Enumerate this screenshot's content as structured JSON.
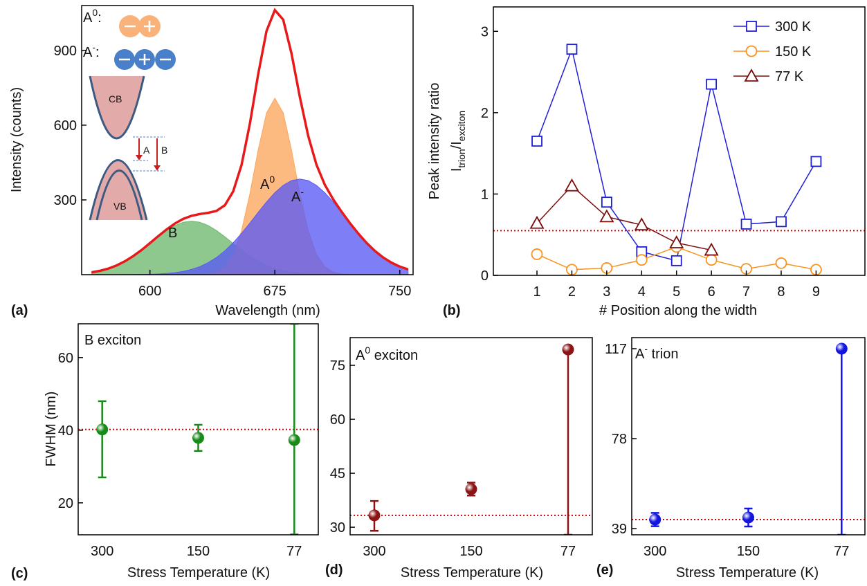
{
  "chart_data": [
    {
      "type": "area",
      "panel_label": "(a)",
      "xlabel": "Wavelength (nm)",
      "ylabel": "Intensity (counts)",
      "xlim": [
        559,
        758
      ],
      "ylim": [
        0,
        1080
      ],
      "xticks": [
        600,
        675,
        750
      ],
      "yticks": [
        300,
        600,
        900
      ],
      "x": [
        565,
        570,
        575,
        580,
        585,
        590,
        595,
        600,
        605,
        610,
        615,
        620,
        625,
        630,
        635,
        640,
        645,
        650,
        655,
        660,
        665,
        670,
        675,
        680,
        685,
        690,
        695,
        700,
        705,
        710,
        715,
        720,
        725,
        730,
        735,
        740,
        745,
        750,
        755
      ],
      "series": [
        {
          "color": "#6fb86f",
          "fill": true,
          "values": [
            9.4,
            15.6,
            24.5,
            37.1,
            53.6,
            74.2,
            98.4,
            125.0,
            151.9,
            176.9,
            197.1,
            210.4,
            215,
            210.4,
            197.1,
            176.9,
            151.9,
            125,
            98.4,
            74.2,
            53.6,
            37.1,
            24.5,
            15.6,
            9.4,
            5.5,
            3.1,
            1.6,
            0.8,
            0.4,
            0.2,
            0.1,
            0,
            0,
            0,
            0,
            0,
            0,
            0
          ]
        },
        {
          "color": "#fba55c",
          "fill": true,
          "values": [
            0,
            0,
            0,
            0,
            0,
            0,
            0,
            0,
            0,
            0,
            0,
            0,
            0.1,
            0.6,
            2.8,
            10.1,
            31.1,
            80.9,
            176.6,
            324.1,
            500.3,
            649.2,
            708,
            649.2,
            500.3,
            324.1,
            176.6,
            80.9,
            31.1,
            10.1,
            2.8,
            0.6,
            0,
            0,
            0,
            0,
            0,
            0,
            0
          ]
        },
        {
          "color": "#5a5af5",
          "fill": true,
          "values": [
            0,
            0,
            0,
            0.1,
            0.2,
            0.4,
            0.8,
            1.5,
            2.7,
            4.8,
            8.1,
            13.3,
            21.2,
            32.5,
            48.2,
            69.1,
            95.8,
            128.1,
            165.7,
            207.1,
            250.1,
            291.9,
            329.1,
            358.5,
            377.5,
            384,
            377.5,
            358.5,
            329.1,
            291.9,
            250.1,
            207.1,
            165.7,
            128.1,
            95.8,
            69.1,
            48.2,
            32.5,
            21.2
          ]
        },
        {
          "color": "#e8191b",
          "fill": false,
          "values": [
            9.4,
            15.6,
            24.5,
            37.2,
            53.8,
            74.6,
            99.2,
            126.5,
            154.6,
            181.7,
            205.2,
            223.7,
            236.3,
            243.5,
            248.1,
            256.1,
            278.8,
            334,
            440.7,
            605.4,
            804,
            978.2,
            1061.6,
            1023.3,
            887.2,
            713.6,
            557.2,
            441,
            361,
            302.4,
            253.1,
            207.8,
            165.7,
            128.1,
            95.8,
            69.1,
            48.2,
            32.5,
            21.2
          ]
        }
      ],
      "annotations": [
        {
          "text": "B"
        },
        {
          "text": "A",
          "sup": "0"
        },
        {
          "text": "A",
          "sup": "-"
        }
      ],
      "inset": {
        "exciton": {
          "text": "A",
          "sup": "0",
          "rest": ":"
        },
        "trion": {
          "text": "A",
          "sup": "-",
          "rest": ":"
        },
        "cb": "CB",
        "vb": "VB",
        "arrow_a": "A",
        "arrow_b": "B"
      }
    },
    {
      "type": "line",
      "panel_label": "(b)",
      "xlabel": "# Position along the width",
      "ylabel": "Peak intensity ratio",
      "ylabel_line2": [
        {
          "text": "I",
          "sub": "trion"
        },
        {
          "text": "/I",
          "sub": "exciton"
        }
      ],
      "xlim": [
        -0.25,
        10.4
      ],
      "ylim": [
        0,
        3.3
      ],
      "xticks": [
        1,
        2,
        3,
        4,
        5,
        6,
        7,
        8,
        9
      ],
      "yticks": [
        0,
        1,
        2,
        3
      ],
      "hline": {
        "value": 0.55,
        "color": "#cc0000"
      },
      "legend": "upper right",
      "x": [
        1,
        2,
        3,
        4,
        5,
        6,
        7,
        8,
        9
      ],
      "series": [
        {
          "name": "300 K",
          "color": "#1f1fd6",
          "marker": "square",
          "values": [
            1.65,
            2.78,
            0.9,
            0.29,
            0.18,
            2.35,
            0.63,
            0.66,
            1.4
          ]
        },
        {
          "name": "150 K",
          "color": "#f7931e",
          "marker": "circle",
          "values": [
            0.26,
            0.07,
            0.09,
            0.19,
            0.35,
            0.19,
            0.08,
            0.15,
            0.07
          ]
        },
        {
          "name": "77 K",
          "color": "#7a0c0c",
          "marker": "triangle",
          "values": [
            0.64,
            1.1,
            0.72,
            0.62,
            0.4,
            0.31,
            null,
            null,
            null
          ]
        }
      ]
    },
    {
      "type": "errorbar",
      "panel_label": "(c)",
      "title": {
        "text": "B exciton"
      },
      "ylabel": "FWHM (nm)",
      "xlabel": "Stress Temperature (K)",
      "categories": [
        "300",
        "150",
        "77"
      ],
      "values": [
        40.2,
        37.9,
        37.3
      ],
      "err_plus": [
        7.8,
        3.6,
        32
      ],
      "err_minus": [
        13.2,
        3.6,
        26
      ],
      "color": "#178a17",
      "ylim": [
        11.2,
        69.3
      ],
      "yticks": [
        20,
        40,
        60
      ],
      "hline": {
        "value": 40.2,
        "color": "#cc0000"
      }
    },
    {
      "type": "errorbar",
      "panel_label": "(d)",
      "title": {
        "text": "A",
        "sup": "0",
        "rest": " exciton"
      },
      "xlabel": "Stress Temperature (K)",
      "categories": [
        "300",
        "150",
        "77"
      ],
      "values": [
        33.3,
        40.6,
        79.4
      ],
      "err_plus": [
        4.0,
        1.8,
        1
      ],
      "err_minus": [
        4.3,
        1.8,
        51.5
      ],
      "color": "#8b1414",
      "ylim": [
        27.9,
        82.7
      ],
      "yticks": [
        30,
        45,
        60,
        75
      ],
      "hline": {
        "value": 33.3,
        "color": "#cc0000"
      }
    },
    {
      "type": "errorbar",
      "panel_label": "(e)",
      "title": {
        "text": "A",
        "sup": "-",
        "rest": " trion"
      },
      "xlabel": "Stress Temperature (K)",
      "categories": [
        "300",
        "150",
        "77"
      ],
      "values": [
        42.9,
        43.8,
        117
      ],
      "err_plus": [
        2.9,
        3.9,
        1
      ],
      "err_minus": [
        2.9,
        3.9,
        80.7
      ],
      "color": "#1414e0",
      "ylim": [
        36.3,
        121.8
      ],
      "yticks": [
        39,
        78,
        117
      ],
      "hline": {
        "value": 42.9,
        "color": "#cc0000"
      }
    }
  ]
}
